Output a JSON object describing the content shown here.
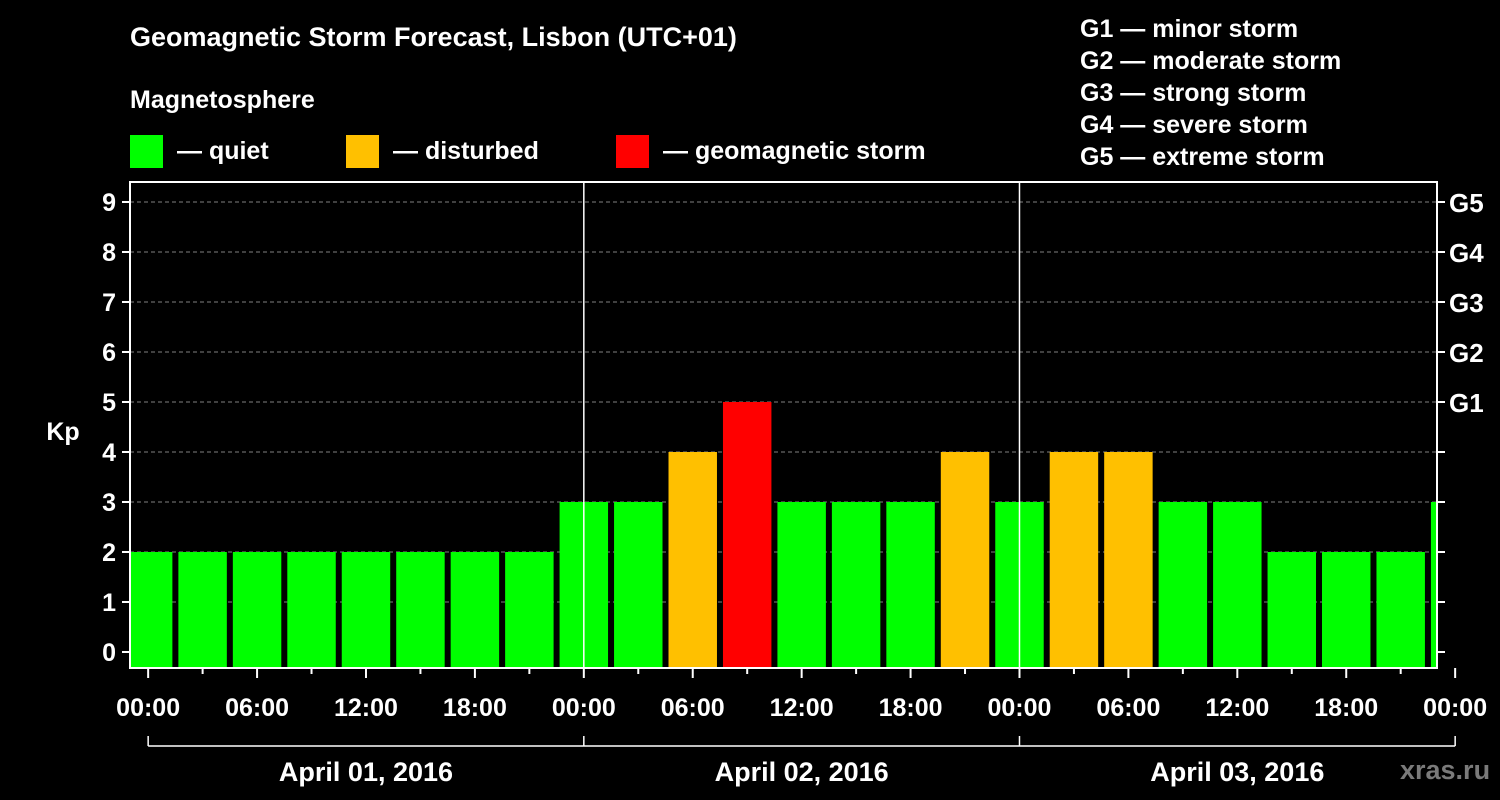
{
  "header": {
    "title": "Geomagnetic Storm Forecast, Lisbon (UTC+01)",
    "magnetosphere_label": "Magnetosphere"
  },
  "legend": [
    {
      "label": "— quiet",
      "color": "#00ff00"
    },
    {
      "label": "— disturbed",
      "color": "#ffc000"
    },
    {
      "label": "— geomagnetic storm",
      "color": "#ff0000"
    }
  ],
  "storm_scale": [
    "G1 — minor storm",
    "G2 — moderate storm",
    "G3 — strong storm",
    "G4 — severe storm",
    "G5 — extreme storm"
  ],
  "watermark": "xras.ru",
  "colors": {
    "quiet": "#00ff00",
    "disturbed": "#ffc000",
    "storm": "#ff0000",
    "grid": "#808080",
    "axis": "#ffffff"
  },
  "chart_data": {
    "type": "bar",
    "ylabel": "Kp",
    "ylim": [
      0,
      9
    ],
    "yticks": [
      0,
      1,
      2,
      3,
      4,
      5,
      6,
      7,
      8,
      9
    ],
    "right_axis": [
      {
        "value": 5,
        "label": "G1"
      },
      {
        "value": 6,
        "label": "G2"
      },
      {
        "value": 7,
        "label": "G3"
      },
      {
        "value": 8,
        "label": "G4"
      },
      {
        "value": 9,
        "label": "G5"
      }
    ],
    "x_start_hours": -1,
    "x_end_hours": 71,
    "bar_interval_hours": 3,
    "xtick_labels": [
      "00:00",
      "06:00",
      "12:00",
      "18:00",
      "00:00",
      "06:00",
      "12:00",
      "18:00",
      "00:00",
      "06:00",
      "12:00",
      "18:00",
      "00:00"
    ],
    "days": [
      "April 01, 2016",
      "April 02, 2016",
      "April 03, 2016"
    ],
    "values": [
      2,
      2,
      2,
      2,
      2,
      2,
      2,
      2,
      3,
      3,
      4,
      5,
      3,
      3,
      3,
      4,
      3,
      4,
      4,
      3,
      3,
      2,
      2,
      2,
      3
    ],
    "levels": [
      "quiet",
      "quiet",
      "quiet",
      "quiet",
      "quiet",
      "quiet",
      "quiet",
      "quiet",
      "quiet",
      "quiet",
      "disturbed",
      "storm",
      "quiet",
      "quiet",
      "quiet",
      "disturbed",
      "quiet",
      "disturbed",
      "disturbed",
      "quiet",
      "quiet",
      "quiet",
      "quiet",
      "quiet",
      "quiet"
    ]
  }
}
